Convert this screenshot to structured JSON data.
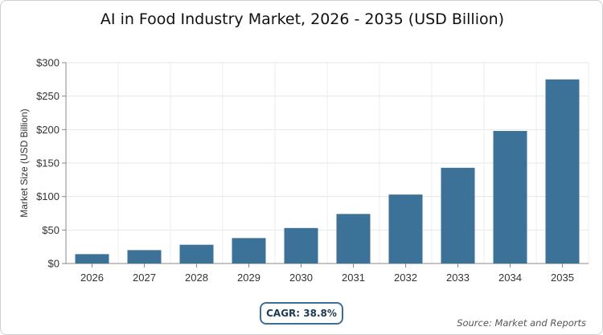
{
  "chart_data": {
    "type": "bar",
    "title": "AI in Food Industry Market, 2026 - 2035 (USD Billion)",
    "xlabel": "",
    "ylabel": "Market Size (USD Billion)",
    "categories": [
      "2026",
      "2027",
      "2028",
      "2029",
      "2030",
      "2031",
      "2032",
      "2033",
      "2034",
      "2035"
    ],
    "values": [
      14,
      20,
      28,
      38,
      53,
      74,
      103,
      143,
      198,
      275
    ],
    "ylim": [
      0,
      300
    ],
    "yticks": [
      0,
      50,
      100,
      150,
      200,
      250,
      300
    ],
    "ytick_labels": [
      "$0",
      "$50",
      "$100",
      "$150",
      "$200",
      "$250",
      "$300"
    ],
    "grid": true,
    "bar_color": "#3d7298"
  },
  "footer": {
    "cagr_label": "CAGR: 38.8%",
    "source_text": "Source: Market and Reports"
  }
}
